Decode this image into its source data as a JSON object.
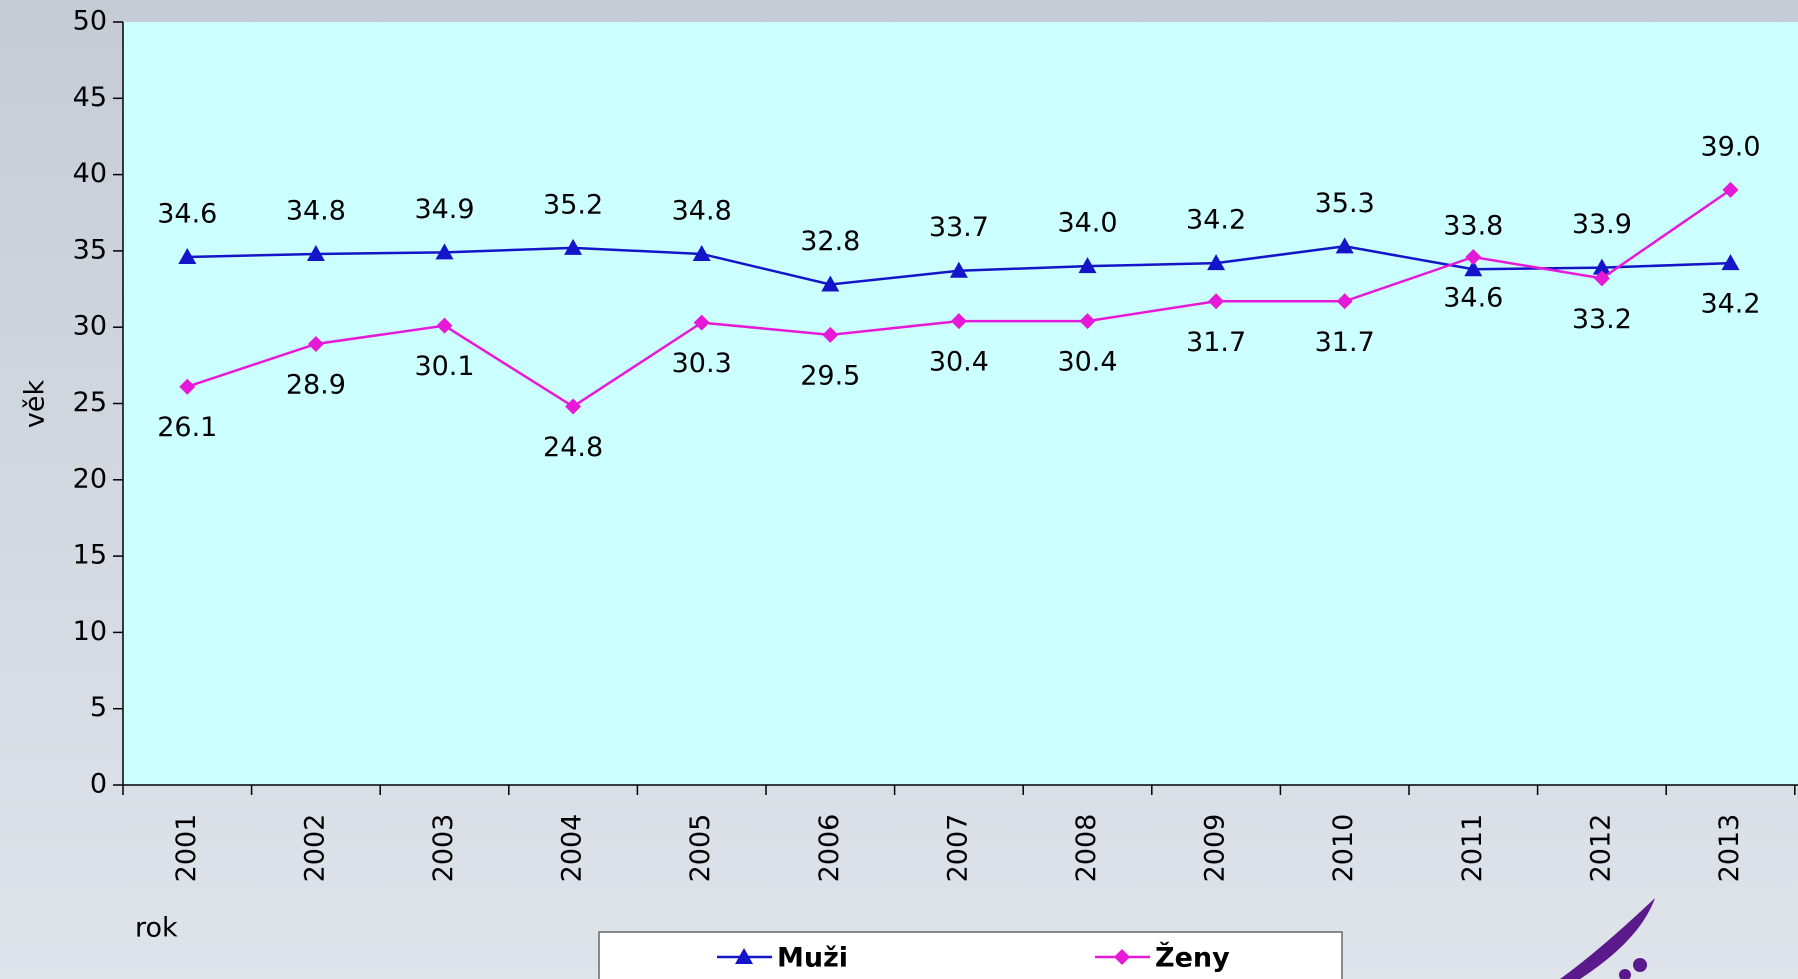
{
  "chart_data": {
    "type": "line",
    "categories": [
      "2001",
      "2002",
      "2003",
      "2004",
      "2005",
      "2006",
      "2007",
      "2008",
      "2009",
      "2010",
      "2011",
      "2012",
      "2013"
    ],
    "series": [
      {
        "name": "Muži",
        "color": "#1414c8",
        "marker": "triangle",
        "values": [
          34.6,
          34.8,
          34.9,
          35.2,
          34.8,
          32.8,
          33.7,
          34.0,
          34.2,
          35.3,
          33.8,
          33.9,
          34.2
        ],
        "value_labels": [
          "34.6",
          "34.8",
          "34.9",
          "35.2",
          "34.8",
          "32.8",
          "33.7",
          "34.0",
          "34.2",
          "35.3",
          "33.8",
          "33.9",
          "34.2"
        ]
      },
      {
        "name": "Ženy",
        "color": "#e619d8",
        "marker": "diamond",
        "values": [
          26.1,
          28.9,
          30.1,
          24.8,
          30.3,
          29.5,
          30.4,
          30.4,
          31.7,
          31.7,
          34.6,
          33.2,
          39.0
        ],
        "value_labels": [
          "26.1",
          "28.9",
          "30.1",
          "24.8",
          "30.3",
          "29.5",
          "30.4",
          "30.4",
          "31.7",
          "31.7",
          "34.6",
          "33.2",
          "39.0"
        ]
      }
    ],
    "ylabel": "věk",
    "xlabel": "rok",
    "ylim": [
      0,
      50
    ],
    "yticks": [
      0,
      5,
      10,
      15,
      20,
      25,
      30,
      35,
      40,
      45,
      50
    ],
    "legend": "bottom"
  }
}
